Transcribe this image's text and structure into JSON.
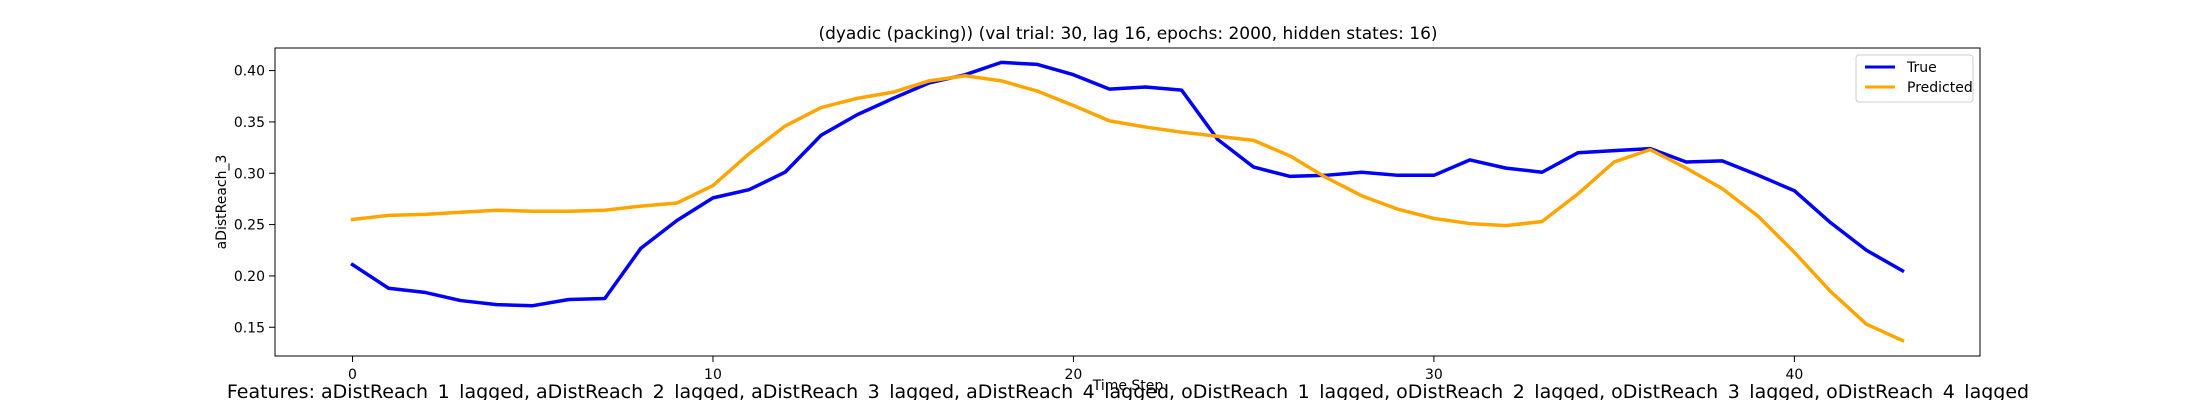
{
  "chart_data": {
    "type": "line",
    "title": "(dyadic (packing)) (val trial: 30, lag 16, epochs: 2000, hidden states: 16)",
    "xlabel": "Time Step",
    "ylabel": "aDistReach_3",
    "xlim": [
      -2.15,
      45.15
    ],
    "ylim": [
      0.122,
      0.422
    ],
    "xticks": [
      0,
      10,
      20,
      30,
      40
    ],
    "yticks": [
      0.15,
      0.2,
      0.25,
      0.3,
      0.35,
      0.4
    ],
    "ytick_labels": [
      "0.15",
      "0.20",
      "0.25",
      "0.30",
      "0.35",
      "0.40"
    ],
    "grid": false,
    "legend_position": "top-right",
    "x": [
      0,
      1,
      2,
      3,
      4,
      5,
      6,
      7,
      8,
      9,
      10,
      11,
      12,
      13,
      14,
      15,
      16,
      17,
      18,
      19,
      20,
      21,
      22,
      23,
      24,
      25,
      26,
      27,
      28,
      29,
      30,
      31,
      32,
      33,
      34,
      35,
      36,
      37,
      38,
      39,
      40,
      41,
      42,
      43
    ],
    "series": [
      {
        "name": "True",
        "color": "#0000ff",
        "values": [
          0.211,
          0.188,
          0.184,
          0.176,
          0.172,
          0.171,
          0.177,
          0.178,
          0.227,
          0.254,
          0.276,
          0.284,
          0.301,
          0.337,
          0.357,
          0.373,
          0.388,
          0.396,
          0.408,
          0.406,
          0.396,
          0.382,
          0.384,
          0.381,
          0.333,
          0.306,
          0.297,
          0.298,
          0.301,
          0.298,
          0.298,
          0.313,
          0.305,
          0.301,
          0.32,
          0.322,
          0.324,
          0.311,
          0.312,
          0.298,
          0.283,
          0.252,
          0.225,
          0.205
        ]
      },
      {
        "name": "Predicted",
        "color": "#ffa500",
        "values": [
          0.255,
          0.259,
          0.26,
          0.262,
          0.264,
          0.263,
          0.263,
          0.264,
          0.268,
          0.271,
          0.288,
          0.319,
          0.346,
          0.364,
          0.373,
          0.379,
          0.39,
          0.395,
          0.39,
          0.38,
          0.366,
          0.351,
          0.345,
          0.34,
          0.336,
          0.332,
          0.317,
          0.296,
          0.278,
          0.265,
          0.256,
          0.251,
          0.249,
          0.253,
          0.28,
          0.311,
          0.323,
          0.305,
          0.285,
          0.258,
          0.223,
          0.185,
          0.153,
          0.137
        ]
      }
    ],
    "footer": "Features: aDistReach_1_lagged, aDistReach_2_lagged, aDistReach_3_lagged, aDistReach_4_lagged, oDistReach_1_lagged, oDistReach_2_lagged, oDistReach_3_lagged, oDistReach_4_lagged"
  }
}
